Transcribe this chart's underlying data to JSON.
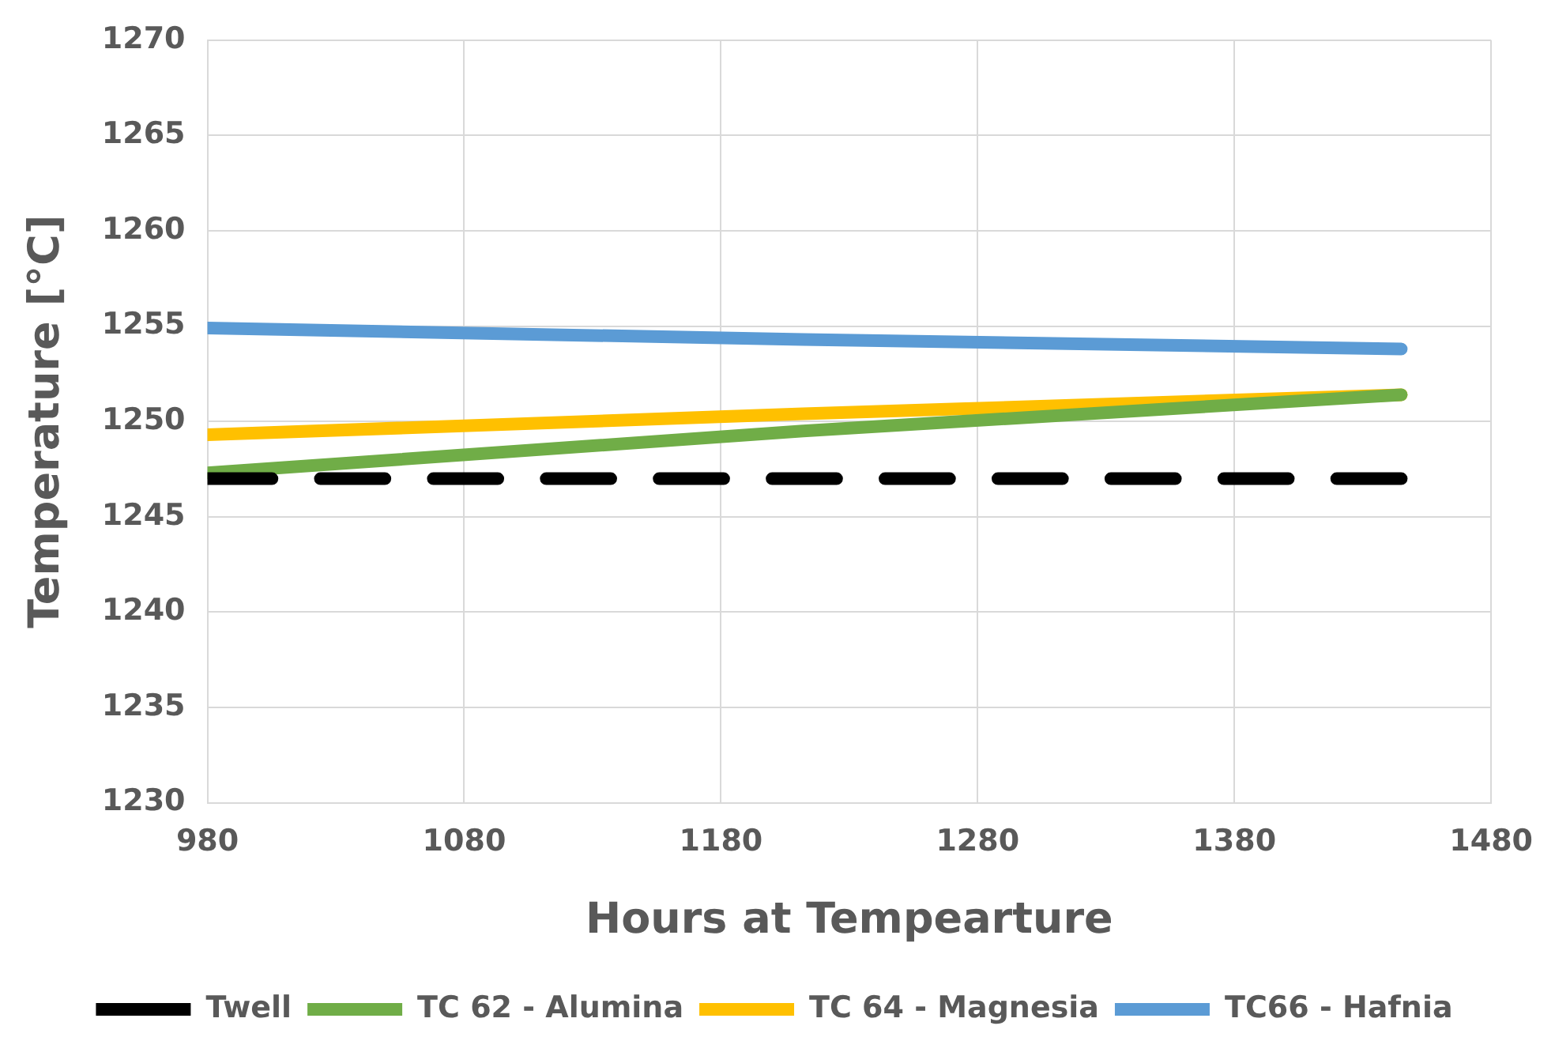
{
  "chart_data": {
    "type": "line",
    "xlabel": "Hours at Tempearture",
    "ylabel": "Temperature [°C]",
    "xlim": [
      980,
      1480
    ],
    "xticks": [
      980,
      1080,
      1180,
      1280,
      1380,
      1480
    ],
    "ylim": [
      1230,
      1270
    ],
    "yticks": [
      1230,
      1235,
      1240,
      1245,
      1250,
      1255,
      1260,
      1265,
      1270
    ],
    "grid": true,
    "legend": "bottom",
    "marker": "none",
    "series": [
      {
        "name": "Twell",
        "color": "#000000",
        "line_style": "dashed",
        "x": [
          980,
          1445
        ],
        "values": [
          1247,
          1247
        ]
      },
      {
        "name": "TC 62 - Alumina",
        "color": "#70ad47",
        "x": [
          980,
          1212,
          1445
        ],
        "values": [
          1247.3,
          1249.5,
          1251.4
        ]
      },
      {
        "name": "TC 64 - Magnesia",
        "color": "#ffc000",
        "x": [
          980,
          1212,
          1445
        ],
        "values": [
          1249.3,
          1250.4,
          1251.4
        ]
      },
      {
        "name": "TC66 - Hafnia",
        "color": "#5b9bd5",
        "x": [
          980,
          1212,
          1445
        ],
        "values": [
          1254.9,
          1254.3,
          1253.8
        ]
      }
    ]
  }
}
